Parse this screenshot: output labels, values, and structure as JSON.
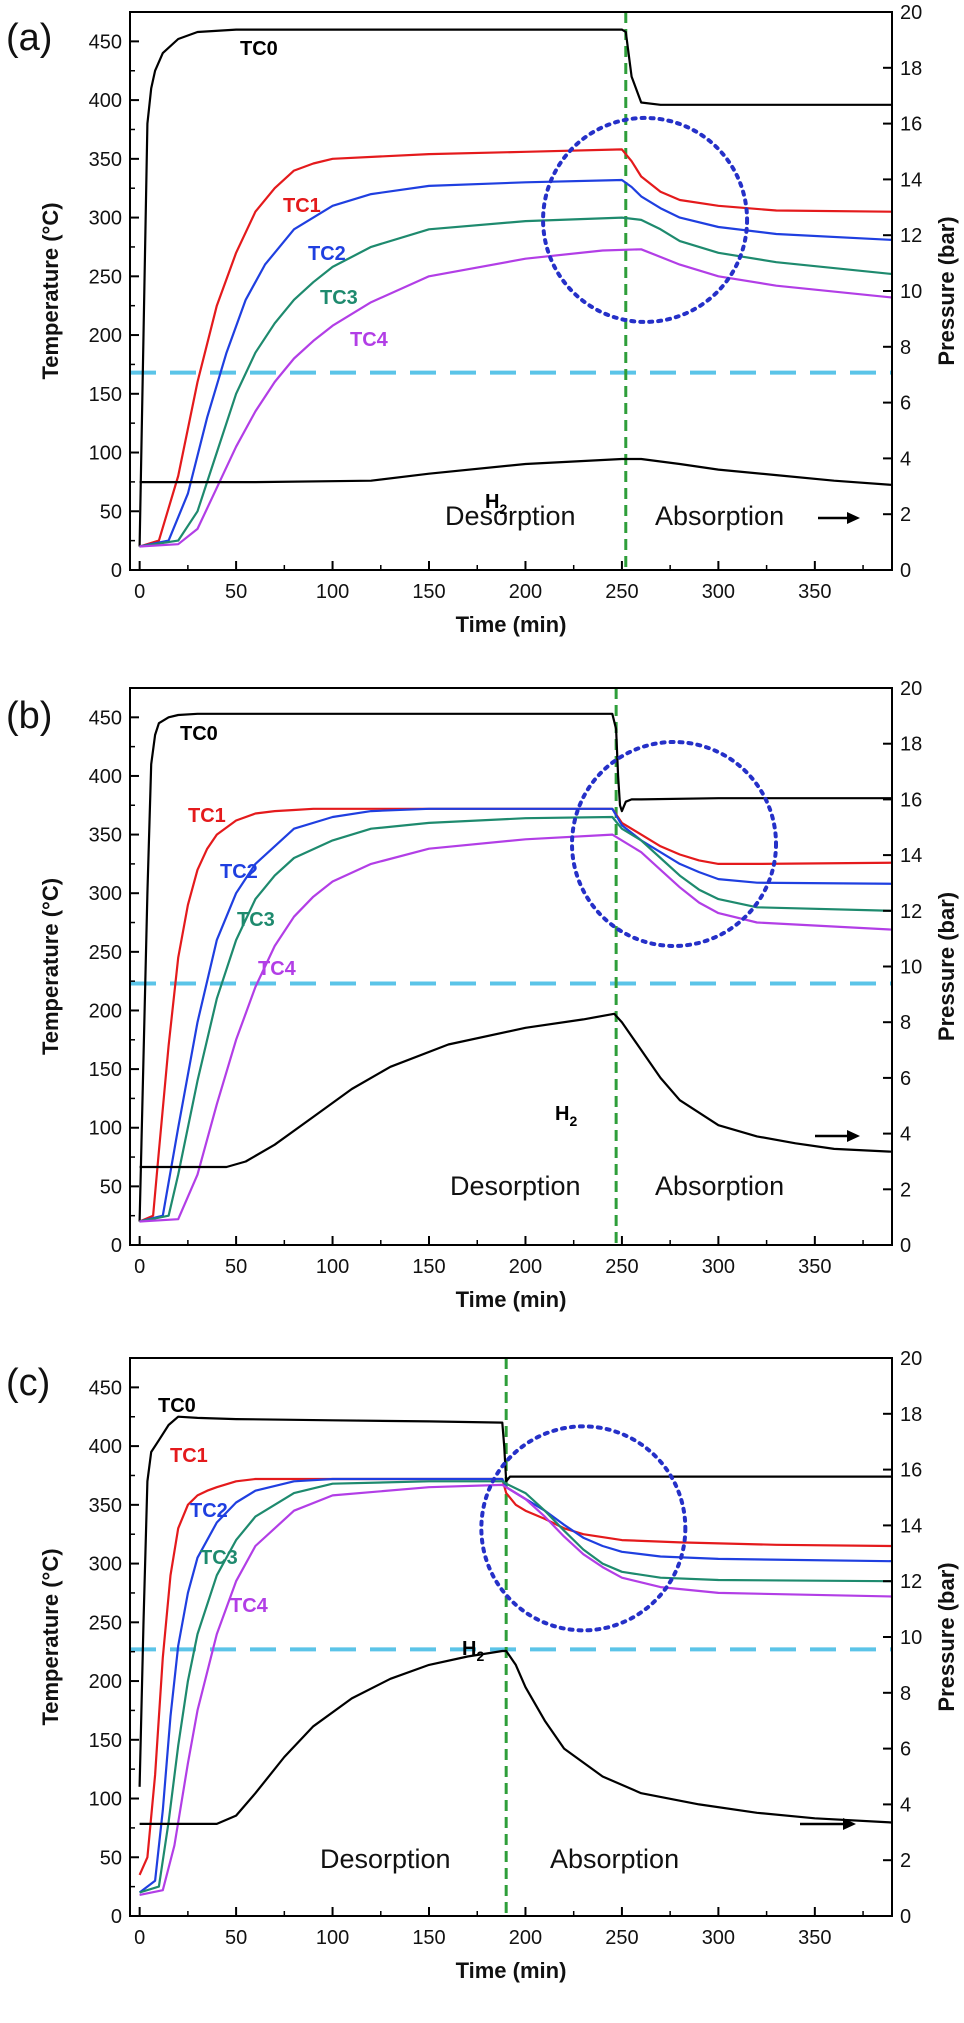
{
  "chart_data": [
    {
      "type": "line",
      "panel_label": "(a)",
      "xlabel": "Time (min)",
      "ylabel": "Temperature (°C)",
      "ylabel_right": "Pressure (bar)",
      "xlim": [
        -5,
        390
      ],
      "ylim": [
        0,
        475
      ],
      "ylim_right": [
        0,
        20
      ],
      "x_ticks": [
        0,
        50,
        100,
        150,
        200,
        250,
        300,
        350
      ],
      "y_ticks": [
        0,
        50,
        100,
        150,
        200,
        250,
        300,
        350,
        400,
        450
      ],
      "y_ticks_right": [
        0,
        2,
        4,
        6,
        8,
        10,
        12,
        14,
        16,
        18,
        20
      ],
      "grid": false,
      "vline_x": 252,
      "hline_y": 168,
      "circle": {
        "cx": 262,
        "cy": 298,
        "r": 90
      },
      "region_labels": {
        "left": "Desorption",
        "right": "Absorption"
      },
      "h2_label": "H2",
      "series": [
        {
          "name": "TC0",
          "color": "#000000",
          "axis": "left",
          "x": [
            0,
            2,
            4,
            6,
            8,
            12,
            20,
            30,
            50,
            80,
            150,
            200,
            250,
            252,
            255,
            260,
            270,
            300,
            390
          ],
          "y": [
            20,
            200,
            380,
            410,
            425,
            440,
            452,
            458,
            460,
            460,
            460,
            460,
            460,
            458,
            420,
            398,
            396,
            396,
            396
          ]
        },
        {
          "name": "TC1",
          "color": "#e41a1c",
          "axis": "left",
          "x": [
            0,
            10,
            20,
            30,
            40,
            50,
            60,
            70,
            80,
            90,
            100,
            150,
            200,
            250,
            255,
            260,
            270,
            280,
            300,
            330,
            390
          ],
          "y": [
            20,
            25,
            80,
            160,
            225,
            270,
            305,
            325,
            340,
            346,
            350,
            354,
            356,
            358,
            348,
            335,
            322,
            315,
            310,
            306,
            305
          ]
        },
        {
          "name": "TC2",
          "color": "#1f3fe0",
          "axis": "left",
          "x": [
            0,
            15,
            25,
            35,
            45,
            55,
            65,
            80,
            100,
            120,
            150,
            200,
            250,
            255,
            260,
            270,
            280,
            300,
            330,
            390
          ],
          "y": [
            20,
            25,
            65,
            130,
            185,
            230,
            260,
            290,
            310,
            320,
            327,
            330,
            332,
            326,
            318,
            308,
            300,
            292,
            286,
            281
          ]
        },
        {
          "name": "TC3",
          "color": "#1e8a6e",
          "axis": "left",
          "x": [
            0,
            20,
            30,
            40,
            50,
            60,
            70,
            80,
            90,
            100,
            120,
            150,
            200,
            250,
            260,
            270,
            280,
            300,
            330,
            390
          ],
          "y": [
            20,
            25,
            50,
            100,
            150,
            185,
            210,
            230,
            245,
            258,
            275,
            290,
            297,
            300,
            298,
            290,
            280,
            270,
            262,
            252
          ]
        },
        {
          "name": "TC4",
          "color": "#b23ee6",
          "axis": "left",
          "x": [
            0,
            20,
            30,
            40,
            50,
            60,
            70,
            80,
            90,
            100,
            120,
            150,
            200,
            240,
            260,
            280,
            300,
            330,
            390
          ],
          "y": [
            20,
            22,
            35,
            70,
            105,
            135,
            160,
            180,
            195,
            208,
            228,
            250,
            265,
            272,
            273,
            260,
            250,
            242,
            232
          ]
        },
        {
          "name": "H2",
          "color": "#000000",
          "axis": "right",
          "x": [
            0,
            60,
            120,
            150,
            200,
            250,
            260,
            280,
            300,
            330,
            360,
            390
          ],
          "y": [
            3.15,
            3.15,
            3.2,
            3.45,
            3.8,
            3.98,
            3.98,
            3.8,
            3.6,
            3.4,
            3.2,
            3.05
          ]
        }
      ]
    },
    {
      "type": "line",
      "panel_label": "(b)",
      "xlabel": "Time (min)",
      "ylabel": "Temperature (°C)",
      "ylabel_right": "Pressure (bar)",
      "xlim": [
        -5,
        390
      ],
      "ylim": [
        0,
        475
      ],
      "ylim_right": [
        0,
        20
      ],
      "x_ticks": [
        0,
        50,
        100,
        150,
        200,
        250,
        300,
        350
      ],
      "y_ticks": [
        0,
        50,
        100,
        150,
        200,
        250,
        300,
        350,
        400,
        450
      ],
      "y_ticks_right": [
        0,
        2,
        4,
        6,
        8,
        10,
        12,
        14,
        16,
        18,
        20
      ],
      "grid": false,
      "vline_x": 247,
      "hline_y": 223,
      "circle": {
        "cx": 277,
        "cy": 342,
        "r": 80
      },
      "region_labels": {
        "left": "Desorption",
        "right": "Absorption"
      },
      "h2_label": "H2",
      "series": [
        {
          "name": "TC0",
          "color": "#000000",
          "axis": "left",
          "x": [
            0,
            4,
            6,
            8,
            10,
            15,
            20,
            30,
            50,
            100,
            200,
            245,
            247,
            248,
            249,
            250,
            252,
            255,
            260,
            300,
            390
          ],
          "y": [
            20,
            300,
            410,
            435,
            445,
            450,
            452,
            453,
            453,
            453,
            453,
            453,
            440,
            400,
            375,
            370,
            378,
            380,
            380,
            381,
            381
          ]
        },
        {
          "name": "TC1",
          "color": "#e41a1c",
          "axis": "left",
          "x": [
            0,
            7,
            10,
            15,
            20,
            25,
            30,
            35,
            40,
            50,
            60,
            70,
            80,
            90,
            100,
            150,
            200,
            245,
            250,
            260,
            270,
            280,
            290,
            300,
            320,
            390
          ],
          "y": [
            20,
            25,
            80,
            170,
            245,
            290,
            320,
            338,
            350,
            362,
            368,
            370,
            371,
            372,
            372,
            372,
            372,
            372,
            360,
            350,
            340,
            333,
            328,
            325,
            325,
            326
          ]
        },
        {
          "name": "TC2",
          "color": "#1f3fe0",
          "axis": "left",
          "x": [
            0,
            12,
            20,
            30,
            40,
            50,
            60,
            70,
            80,
            100,
            120,
            150,
            200,
            245,
            250,
            260,
            270,
            280,
            290,
            300,
            320,
            390
          ],
          "y": [
            20,
            25,
            100,
            190,
            260,
            300,
            325,
            340,
            355,
            365,
            370,
            372,
            372,
            372,
            358,
            345,
            335,
            325,
            318,
            312,
            309,
            308
          ]
        },
        {
          "name": "TC3",
          "color": "#1e8a6e",
          "axis": "left",
          "x": [
            0,
            15,
            20,
            30,
            40,
            50,
            60,
            70,
            80,
            100,
            120,
            150,
            200,
            245,
            250,
            260,
            270,
            280,
            290,
            300,
            320,
            390
          ],
          "y": [
            20,
            25,
            60,
            140,
            210,
            260,
            295,
            315,
            330,
            345,
            355,
            360,
            364,
            365,
            355,
            345,
            330,
            315,
            303,
            295,
            288,
            285
          ]
        },
        {
          "name": "TC4",
          "color": "#b23ee6",
          "axis": "left",
          "x": [
            0,
            20,
            30,
            40,
            50,
            60,
            70,
            80,
            90,
            100,
            120,
            150,
            200,
            245,
            250,
            260,
            270,
            280,
            290,
            300,
            320,
            390
          ],
          "y": [
            20,
            22,
            60,
            120,
            175,
            220,
            255,
            280,
            297,
            310,
            325,
            338,
            346,
            350,
            345,
            335,
            320,
            305,
            292,
            283,
            275,
            269
          ]
        },
        {
          "name": "H2",
          "color": "#000000",
          "axis": "right",
          "x": [
            0,
            45,
            55,
            70,
            90,
            110,
            130,
            160,
            200,
            230,
            246,
            250,
            260,
            270,
            280,
            300,
            320,
            340,
            360,
            390
          ],
          "y": [
            2.8,
            2.8,
            3.0,
            3.6,
            4.6,
            5.6,
            6.4,
            7.2,
            7.8,
            8.1,
            8.3,
            8.0,
            7.0,
            6.0,
            5.2,
            4.3,
            3.9,
            3.65,
            3.45,
            3.35
          ]
        }
      ]
    },
    {
      "type": "line",
      "panel_label": "(c)",
      "xlabel": "Time (min)",
      "ylabel": "Temperature (°C)",
      "ylabel_right": "Pressure (bar)",
      "xlim": [
        -5,
        390
      ],
      "ylim": [
        0,
        475
      ],
      "ylim_right": [
        0,
        20
      ],
      "x_ticks": [
        0,
        50,
        100,
        150,
        200,
        250,
        300,
        350
      ],
      "y_ticks": [
        0,
        50,
        100,
        150,
        200,
        250,
        300,
        350,
        400,
        450
      ],
      "y_ticks_right": [
        0,
        2,
        4,
        6,
        8,
        10,
        12,
        14,
        16,
        18,
        20
      ],
      "grid": false,
      "vline_x": 190,
      "hline_y": 227,
      "circle": {
        "cx": 230,
        "cy": 330,
        "r": 82
      },
      "region_labels": {
        "left": "Desorption",
        "right": "Absorption"
      },
      "h2_label": "H2",
      "series": [
        {
          "name": "TC0",
          "color": "#000000",
          "axis": "left",
          "x": [
            0,
            2,
            4,
            6,
            10,
            15,
            20,
            30,
            50,
            100,
            150,
            188,
            189,
            190,
            191,
            192,
            195,
            200,
            250,
            300,
            390
          ],
          "y": [
            110,
            250,
            370,
            395,
            405,
            418,
            425,
            424,
            423,
            422,
            421,
            420,
            400,
            370,
            372,
            374,
            374,
            374,
            374,
            374,
            374
          ]
        },
        {
          "name": "TC1",
          "color": "#e41a1c",
          "axis": "left",
          "x": [
            0,
            4,
            8,
            12,
            16,
            20,
            25,
            30,
            35,
            40,
            50,
            60,
            80,
            100,
            150,
            188,
            190,
            195,
            200,
            210,
            220,
            230,
            250,
            280,
            330,
            390
          ],
          "y": [
            35,
            50,
            120,
            220,
            290,
            330,
            350,
            358,
            362,
            365,
            370,
            372,
            372,
            372,
            372,
            372,
            360,
            350,
            345,
            338,
            330,
            325,
            320,
            318,
            316,
            315
          ]
        },
        {
          "name": "TC2",
          "color": "#1f3fe0",
          "axis": "left",
          "x": [
            0,
            8,
            12,
            16,
            20,
            25,
            30,
            40,
            50,
            60,
            80,
            100,
            150,
            188,
            190,
            200,
            210,
            220,
            230,
            240,
            250,
            270,
            300,
            390
          ],
          "y": [
            20,
            30,
            90,
            170,
            230,
            275,
            305,
            335,
            352,
            362,
            370,
            372,
            372,
            372,
            365,
            355,
            345,
            333,
            322,
            315,
            310,
            306,
            304,
            302
          ]
        },
        {
          "name": "TC3",
          "color": "#1e8a6e",
          "axis": "left",
          "x": [
            0,
            10,
            15,
            20,
            25,
            30,
            40,
            50,
            60,
            80,
            100,
            150,
            188,
            190,
            200,
            210,
            220,
            230,
            240,
            250,
            270,
            300,
            390
          ],
          "y": [
            20,
            25,
            80,
            145,
            200,
            240,
            290,
            320,
            340,
            360,
            368,
            370,
            370,
            368,
            360,
            345,
            328,
            312,
            300,
            293,
            288,
            286,
            285
          ]
        },
        {
          "name": "TC4",
          "color": "#b23ee6",
          "axis": "left",
          "x": [
            0,
            12,
            18,
            25,
            30,
            40,
            50,
            60,
            80,
            100,
            150,
            188,
            190,
            200,
            210,
            220,
            230,
            240,
            250,
            270,
            300,
            390
          ],
          "y": [
            18,
            22,
            60,
            130,
            175,
            240,
            285,
            315,
            345,
            358,
            365,
            367,
            365,
            355,
            340,
            323,
            308,
            297,
            288,
            280,
            275,
            272
          ]
        },
        {
          "name": "H2",
          "color": "#000000",
          "axis": "right",
          "x": [
            0,
            40,
            50,
            60,
            75,
            90,
            110,
            130,
            150,
            170,
            188,
            190,
            195,
            200,
            210,
            220,
            240,
            260,
            290,
            320,
            350,
            390
          ],
          "y": [
            3.3,
            3.3,
            3.6,
            4.4,
            5.7,
            6.8,
            7.8,
            8.5,
            9.0,
            9.3,
            9.5,
            9.5,
            9.0,
            8.2,
            7.0,
            6.0,
            5.0,
            4.4,
            4.0,
            3.7,
            3.5,
            3.35
          ]
        }
      ]
    }
  ]
}
